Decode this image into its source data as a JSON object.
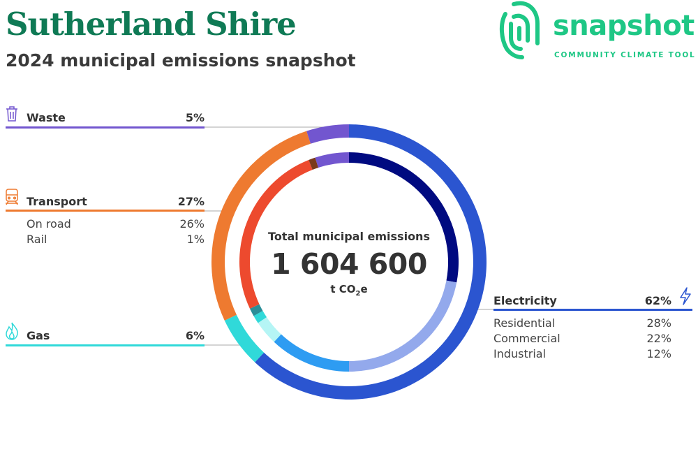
{
  "header": {
    "title": "Sutherland Shire",
    "subtitle": "2024 municipal emissions snapshot"
  },
  "logo": {
    "word": "snapshot",
    "tagline": "COMMUNITY CLIMATE TOOL",
    "color": "#1ec785",
    "icon": "fingerprint-icon"
  },
  "center": {
    "label": "Total municipal emissions",
    "value": "1 604 600",
    "unit_main": "t CO",
    "unit_sub": "2",
    "unit_end": "e"
  },
  "chart_data": {
    "type": "pie",
    "total": 1604600,
    "unit": "t CO2e",
    "categories": [
      {
        "name": "Electricity",
        "percent": 62,
        "percent_label": "62%",
        "color": "#2b55d0",
        "icon": "lightning-icon",
        "subs": [
          {
            "name": "Residential",
            "percent": 28,
            "percent_label": "28%",
            "color": "#000a80"
          },
          {
            "name": "Commercial",
            "percent": 22,
            "percent_label": "22%",
            "color": "#93a9ec"
          },
          {
            "name": "Industrial",
            "percent": 12,
            "percent_label": "12%",
            "color": "#2e9cf2"
          }
        ]
      },
      {
        "name": "Gas",
        "percent": 6,
        "percent_label": "6%",
        "color": "#30d9d9",
        "icon": "flame-icon",
        "subs": [
          {
            "name": "",
            "percent": 3.6,
            "color": "#b5f5f5"
          },
          {
            "name": "",
            "percent": 1.2,
            "color": "#30d9d9"
          },
          {
            "name": "",
            "percent": 1.2,
            "color": "#2a8e98"
          }
        ]
      },
      {
        "name": "Transport",
        "percent": 27,
        "percent_label": "27%",
        "color": "#ee7a30",
        "icon": "train-icon",
        "subs": [
          {
            "name": "On road",
            "percent": 26,
            "percent_label": "26%",
            "color": "#ed4a2e"
          },
          {
            "name": "Rail",
            "percent": 1,
            "percent_label": "1%",
            "color": "#7a3a1a"
          }
        ]
      },
      {
        "name": "Waste",
        "percent": 5,
        "percent_label": "5%",
        "color": "#7256cf",
        "icon": "trash-icon",
        "subs": [
          {
            "name": "",
            "percent": 5,
            "color": "#7256cf"
          }
        ]
      }
    ]
  }
}
